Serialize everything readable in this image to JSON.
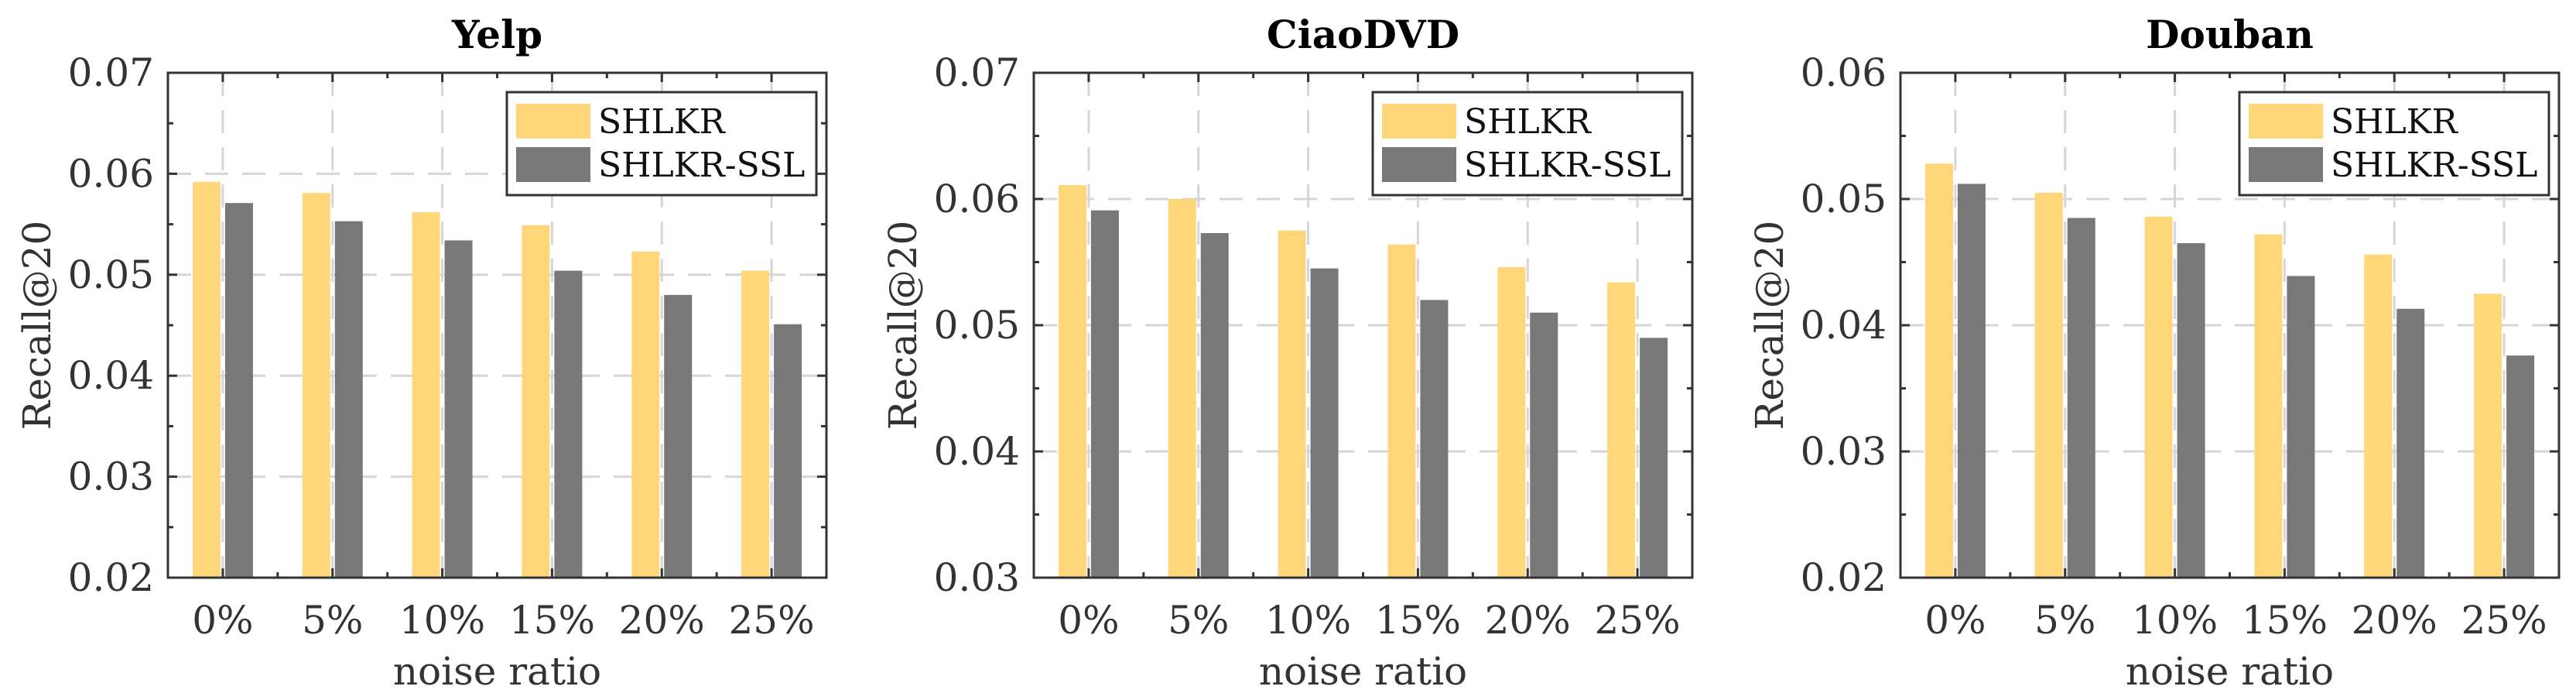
{
  "chart_data": [
    {
      "type": "bar",
      "title": "Yelp",
      "xlabel": "noise ratio",
      "ylabel": "Recall@20",
      "categories": [
        "0%",
        "5%",
        "10%",
        "15%",
        "20%",
        "25%"
      ],
      "ylim": [
        0.02,
        0.07
      ],
      "yticks": [
        "0.02",
        "0.03",
        "0.04",
        "0.05",
        "0.06",
        "0.07"
      ],
      "grid": true,
      "legend_position": "top-right",
      "series": [
        {
          "name": "SHLKR",
          "color": "#FFD77A",
          "values": [
            0.0592,
            0.0581,
            0.0562,
            0.0549,
            0.0523,
            0.0504
          ]
        },
        {
          "name": "SHLKR-SSL",
          "color": "#787878",
          "values": [
            0.0571,
            0.0553,
            0.0534,
            0.0504,
            0.048,
            0.0451
          ]
        }
      ]
    },
    {
      "type": "bar",
      "title": "CiaoDVD",
      "xlabel": "noise ratio",
      "ylabel": "Recall@20",
      "categories": [
        "0%",
        "5%",
        "10%",
        "15%",
        "20%",
        "25%"
      ],
      "ylim": [
        0.03,
        0.07
      ],
      "yticks": [
        "0.03",
        "0.04",
        "0.05",
        "0.06",
        "0.07"
      ],
      "grid": true,
      "legend_position": "top-right",
      "series": [
        {
          "name": "SHLKR",
          "color": "#FFD77A",
          "values": [
            0.0611,
            0.06,
            0.0575,
            0.0564,
            0.0546,
            0.0534
          ]
        },
        {
          "name": "SHLKR-SSL",
          "color": "#787878",
          "values": [
            0.0591,
            0.0573,
            0.0545,
            0.052,
            0.051,
            0.049
          ]
        }
      ]
    },
    {
      "type": "bar",
      "title": "Douban",
      "xlabel": "noise ratio",
      "ylabel": "Recall@20",
      "categories": [
        "0%",
        "5%",
        "10%",
        "15%",
        "20%",
        "25%"
      ],
      "ylim": [
        0.02,
        0.06
      ],
      "yticks": [
        "0.02",
        "0.03",
        "0.04",
        "0.05",
        "0.06"
      ],
      "grid": true,
      "legend_position": "top-right",
      "series": [
        {
          "name": "SHLKR",
          "color": "#FFD77A",
          "values": [
            0.0528,
            0.0505,
            0.0486,
            0.0472,
            0.0456,
            0.0425
          ]
        },
        {
          "name": "SHLKR-SSL",
          "color": "#787878",
          "values": [
            0.0512,
            0.0485,
            0.0465,
            0.0439,
            0.0413,
            0.0376
          ]
        }
      ]
    }
  ]
}
